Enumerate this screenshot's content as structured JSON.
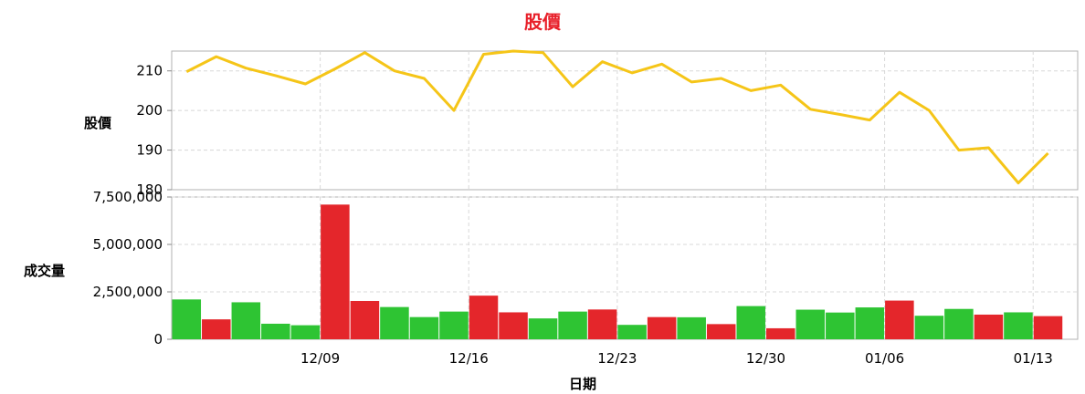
{
  "chart_data": {
    "title": "股價",
    "xlabel": "日期",
    "x_tick_labels": [
      "12/09",
      "12/16",
      "12/23",
      "12/30",
      "01/06",
      "01/13"
    ],
    "panels": [
      {
        "type": "line",
        "ylabel": "股價",
        "ylim": [
          180,
          215
        ],
        "y_ticks": [
          180,
          190,
          200,
          210
        ],
        "grid": true,
        "color": "#f5c518",
        "values": [
          209.8,
          213.6,
          210.7,
          208.8,
          206.7,
          210.5,
          214.6,
          210.0,
          208.1,
          200.0,
          214.2,
          215.0,
          214.6,
          206.0,
          212.3,
          209.5,
          211.7,
          207.2,
          208.1,
          205.0,
          206.4,
          200.3,
          199.0,
          197.6,
          204.6,
          200.0,
          190.0,
          190.6,
          181.7,
          189.2
        ]
      },
      {
        "type": "bar",
        "ylabel": "成交量",
        "ylim": [
          0,
          7500000
        ],
        "y_ticks": [
          "0",
          "2,500,000",
          "5,000,000",
          "7,500,000"
        ],
        "grid": true,
        "up_color": "#e4262b",
        "down_color": "#2ec433",
        "values": [
          2100000,
          1050000,
          1950000,
          820000,
          740000,
          7100000,
          2020000,
          1700000,
          1170000,
          1460000,
          2300000,
          1420000,
          1100000,
          1460000,
          1570000,
          760000,
          1170000,
          1160000,
          800000,
          1750000,
          580000,
          1560000,
          1410000,
          1680000,
          2040000,
          1240000,
          1600000,
          1300000,
          1420000,
          1220000
        ],
        "colors": [
          "down",
          "up",
          "down",
          "down",
          "down",
          "up",
          "up",
          "down",
          "down",
          "down",
          "up",
          "up",
          "down",
          "down",
          "up",
          "down",
          "up",
          "down",
          "up",
          "down",
          "up",
          "down",
          "down",
          "down",
          "up",
          "down",
          "down",
          "up",
          "down",
          "up"
        ]
      }
    ]
  }
}
